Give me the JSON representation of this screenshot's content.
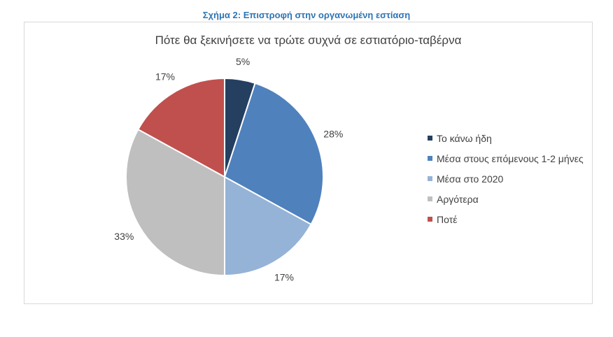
{
  "figure_caption": "Σχήμα 2: Επιστροφή στην οργανωμένη εστίαση",
  "chart_data": {
    "type": "pie",
    "title": "Πότε θα ξεκινήσετε να τρώτε συχνά σε εστιατόριο-ταβέρνα",
    "categories": [
      "Το κάνω ήδη",
      "Μέσα στους επόμενους 1-2 μήνες",
      "Μέσα στο 2020",
      "Αργότερα",
      "Ποτέ"
    ],
    "values": [
      5,
      28,
      17,
      33,
      17
    ],
    "data_labels": [
      "5%",
      "28%",
      "17%",
      "33%",
      "17%"
    ],
    "colors": [
      "#243f60",
      "#4f81bd",
      "#95b3d7",
      "#bfbfbf",
      "#c0504d"
    ],
    "legend_position": "right"
  }
}
